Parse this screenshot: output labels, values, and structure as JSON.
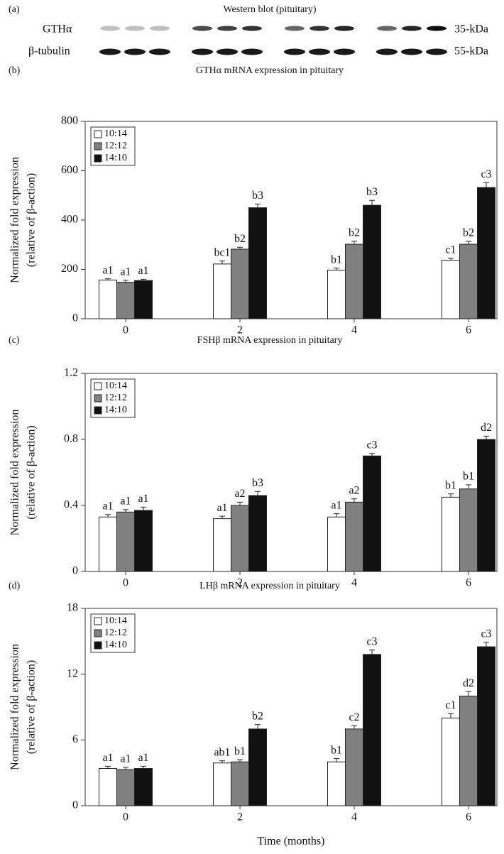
{
  "blot": {
    "panel": "(a)",
    "title": "Western blot (pituitary)",
    "rows": [
      {
        "label": "GTHα",
        "size": "35-kDa"
      },
      {
        "label": "β-tubulin",
        "size": "55-kDa"
      }
    ]
  },
  "chart_data": [
    {
      "type": "bar",
      "panel": "(b)",
      "title": "GTHα mRNA expression in pituitary",
      "ylabel": [
        "Normalized fold expression",
        "(relative of β-action)"
      ],
      "categories": [
        "0",
        "2",
        "4",
        "6"
      ],
      "ylim": [
        0,
        800
      ],
      "yticks": [
        0,
        200,
        400,
        600,
        800
      ],
      "series": [
        {
          "name": "10:14",
          "color": "#ffffff",
          "values": [
            157,
            222,
            197,
            237
          ],
          "errors": [
            5,
            12,
            8,
            8
          ],
          "annotations": [
            "a1",
            "bc1",
            "b1",
            "c1"
          ]
        },
        {
          "name": "12:12",
          "color": "#808080",
          "values": [
            148,
            282,
            302,
            302
          ],
          "errors": [
            8,
            8,
            12,
            12
          ],
          "annotations": [
            "a1",
            "b2",
            "b2",
            "b2"
          ]
        },
        {
          "name": "14:10",
          "color": "#111111",
          "values": [
            155,
            450,
            460,
            532
          ],
          "errors": [
            5,
            15,
            20,
            20
          ],
          "annotations": [
            "a1",
            "b3",
            "b3",
            "c3"
          ]
        }
      ]
    },
    {
      "type": "bar",
      "panel": "(c)",
      "title": "FSHβ mRNA expression in pituitary",
      "ylabel": [
        "Normalized fold expression",
        "(relative of β-action)"
      ],
      "categories": [
        "0",
        "2",
        "4",
        "6"
      ],
      "ylim": [
        0,
        1.2
      ],
      "yticks": [
        0,
        0.4,
        0.8,
        1.2
      ],
      "series": [
        {
          "name": "10:14",
          "color": "#ffffff",
          "values": [
            0.33,
            0.32,
            0.33,
            0.45
          ],
          "errors": [
            0.015,
            0.015,
            0.02,
            0.02
          ],
          "annotations": [
            "a1",
            "a1",
            "a1",
            "b1"
          ]
        },
        {
          "name": "12:12",
          "color": "#808080",
          "values": [
            0.36,
            0.4,
            0.42,
            0.5
          ],
          "errors": [
            0.015,
            0.02,
            0.02,
            0.025
          ],
          "annotations": [
            "a1",
            "a2",
            "a2",
            "b1"
          ]
        },
        {
          "name": "14:10",
          "color": "#111111",
          "values": [
            0.37,
            0.46,
            0.7,
            0.8
          ],
          "errors": [
            0.02,
            0.025,
            0.015,
            0.02
          ],
          "annotations": [
            "a1",
            "b3",
            "c3",
            "d2"
          ]
        }
      ]
    },
    {
      "type": "bar",
      "panel": "(d)",
      "title": "LHβ mRNA expression in pituitary",
      "ylabel": [
        "Normalized fold expression",
        "(relative of β-action)"
      ],
      "xlabel": "Time (months)",
      "categories": [
        "0",
        "2",
        "4",
        "6"
      ],
      "ylim": [
        0,
        18
      ],
      "yticks": [
        0,
        6,
        12,
        18
      ],
      "series": [
        {
          "name": "10:14",
          "color": "#ffffff",
          "values": [
            3.4,
            3.9,
            4.0,
            8.0
          ],
          "errors": [
            0.2,
            0.2,
            0.3,
            0.4
          ],
          "annotations": [
            "a1",
            "ab1",
            "b1",
            "c1"
          ]
        },
        {
          "name": "12:12",
          "color": "#808080",
          "values": [
            3.3,
            4.0,
            7.0,
            10.0
          ],
          "errors": [
            0.2,
            0.2,
            0.3,
            0.4
          ],
          "annotations": [
            "a1",
            "b1",
            "c2",
            "d2"
          ]
        },
        {
          "name": "14:10",
          "color": "#111111",
          "values": [
            3.4,
            7.0,
            13.8,
            14.5
          ],
          "errors": [
            0.2,
            0.4,
            0.4,
            0.4
          ],
          "annotations": [
            "a1",
            "b2",
            "c3",
            "c3"
          ]
        }
      ]
    }
  ]
}
